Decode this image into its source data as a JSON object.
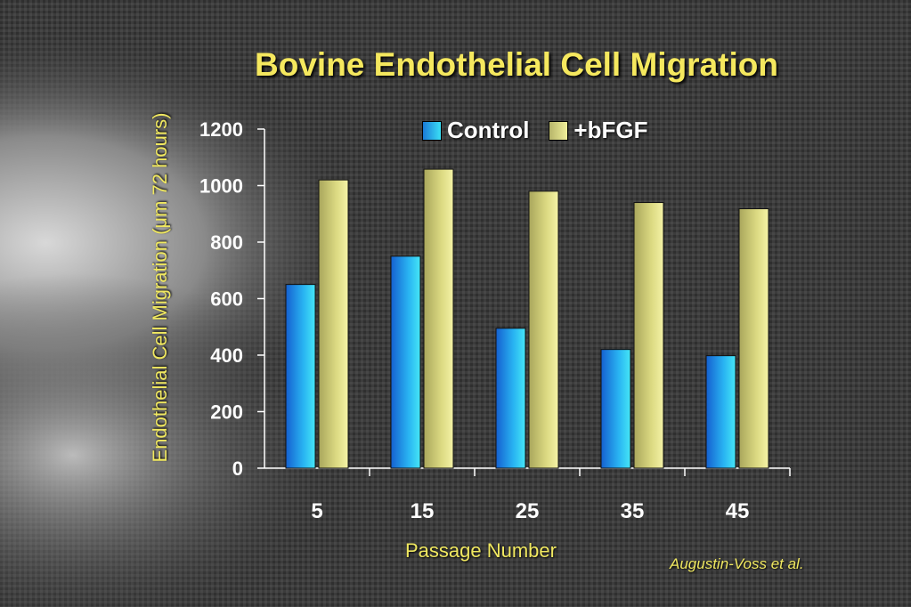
{
  "chart_data": {
    "type": "bar",
    "title": "Bovine Endothelial Cell Migration",
    "xlabel": "Passage Number",
    "ylabel": "Endothelial Cell Migration  (μm 72 hours)",
    "categories": [
      "5",
      "15",
      "25",
      "35",
      "45"
    ],
    "series": [
      {
        "name": "Control",
        "values": [
          650,
          750,
          495,
          420,
          398
        ]
      },
      {
        "name": "+bFGF",
        "values": [
          1020,
          1058,
          980,
          940,
          918
        ]
      }
    ],
    "ylim": [
      0,
      1200
    ],
    "yticks": [
      "0",
      "200",
      "400",
      "600",
      "800",
      "1000",
      "1200"
    ],
    "legend": "top",
    "grid": false,
    "colors": {
      "control": "#2aaef0",
      "bfgf": "#e6e48a",
      "text": "#ffffff",
      "accent": "#f5e85e"
    }
  },
  "credit": "Augustin-Voss et al."
}
